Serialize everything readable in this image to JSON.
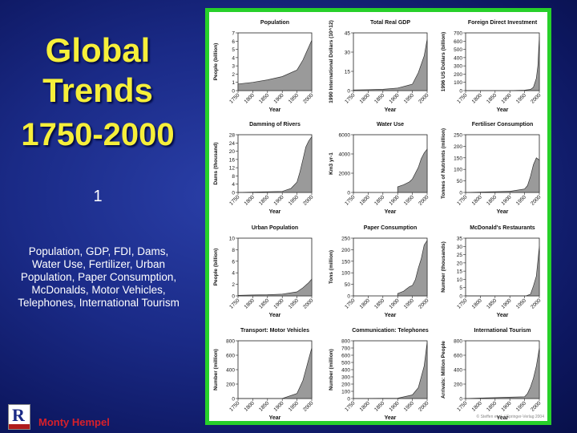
{
  "slide": {
    "title": "Global Trends",
    "years": "1750-2000",
    "number": "1",
    "caption": "Population, GDP, FDI, Dams, Water Use, Fertilizer, Urban Population, Paper Consumption, McDonalds, Motor Vehicles, Telephones, International Tourism",
    "author": "Monty Hempel",
    "credit": "© Steffen et al. / Springer-Verlag 2004"
  },
  "colors": {
    "title": "#f6ef3a",
    "frame": "#27d02a",
    "fill": "#9a9a9a",
    "author": "#d8202a"
  },
  "chart_data": [
    {
      "type": "area",
      "title": "Population",
      "ylabel": "People (billion)",
      "xlabel": "Year",
      "ylim": [
        0,
        7
      ],
      "yticks": [
        0,
        1,
        2,
        3,
        4,
        5,
        6,
        7
      ],
      "x": [
        1750,
        1800,
        1850,
        1900,
        1950,
        1970,
        1990,
        2000
      ],
      "values": [
        0.8,
        1.0,
        1.3,
        1.7,
        2.5,
        3.7,
        5.3,
        6.1
      ]
    },
    {
      "type": "area",
      "title": "Total Real GDP",
      "ylabel": "1990 International Dollars (10^12)",
      "xlabel": "Year",
      "ylim": [
        0,
        45
      ],
      "yticks": [
        0,
        15,
        30,
        45
      ],
      "x": [
        1750,
        1800,
        1850,
        1900,
        1950,
        1970,
        1990,
        2000
      ],
      "values": [
        0.5,
        0.7,
        1.0,
        2.0,
        5.0,
        14,
        27,
        40
      ]
    },
    {
      "type": "area",
      "title": "Foreign Direct Investment",
      "ylabel": "1996 US Dollars (billion)",
      "xlabel": "Year",
      "ylim": [
        0,
        700
      ],
      "yticks": [
        0,
        100,
        200,
        300,
        400,
        500,
        600,
        700
      ],
      "x": [
        1750,
        1900,
        1950,
        1970,
        1980,
        1990,
        1995,
        2000
      ],
      "values": [
        0,
        0,
        5,
        15,
        40,
        150,
        300,
        650
      ]
    },
    {
      "type": "area",
      "title": "Damming of Rivers",
      "ylabel": "Dams (thousand)",
      "xlabel": "Year",
      "ylim": [
        0,
        28
      ],
      "yticks": [
        0,
        4,
        8,
        12,
        16,
        20,
        24,
        28
      ],
      "x": [
        1750,
        1900,
        1930,
        1950,
        1960,
        1970,
        1980,
        1990,
        2000
      ],
      "values": [
        0,
        0.5,
        2,
        5,
        10,
        16,
        22,
        25,
        27
      ]
    },
    {
      "type": "area",
      "title": "Water Use",
      "ylabel": "Km3 yr-1",
      "xlabel": "Year",
      "ylim": [
        0,
        6000
      ],
      "yticks": [
        0,
        2000,
        4000,
        6000
      ],
      "x": [
        1900,
        1920,
        1940,
        1950,
        1960,
        1970,
        1980,
        1990,
        2000
      ],
      "values": [
        580,
        800,
        1100,
        1400,
        2000,
        2600,
        3500,
        4100,
        4500
      ]
    },
    {
      "type": "area",
      "title": "Fertiliser Consumption",
      "ylabel": "Tonnes of Nutrients (million)",
      "xlabel": "Year",
      "ylim": [
        0,
        250
      ],
      "yticks": [
        0,
        50,
        100,
        150,
        200,
        250
      ],
      "x": [
        1750,
        1900,
        1950,
        1960,
        1970,
        1980,
        1990,
        2000
      ],
      "values": [
        0,
        5,
        15,
        30,
        70,
        120,
        150,
        140
      ]
    },
    {
      "type": "area",
      "title": "Urban Population",
      "ylabel": "People (billion)",
      "xlabel": "Year",
      "ylim": [
        0,
        10
      ],
      "yticks": [
        0,
        2,
        4,
        6,
        8,
        10
      ],
      "x": [
        1750,
        1800,
        1850,
        1900,
        1950,
        1970,
        1990,
        2000
      ],
      "values": [
        0.1,
        0.15,
        0.2,
        0.3,
        0.7,
        1.4,
        2.3,
        2.9
      ]
    },
    {
      "type": "area",
      "title": "Paper Consumption",
      "ylabel": "Tons (million)",
      "xlabel": "Year",
      "ylim": [
        0,
        250
      ],
      "yticks": [
        0,
        50,
        100,
        150,
        200,
        250
      ],
      "x": [
        1900,
        1920,
        1940,
        1950,
        1960,
        1970,
        1980,
        1990,
        2000
      ],
      "values": [
        10,
        20,
        40,
        45,
        70,
        120,
        160,
        220,
        240
      ]
    },
    {
      "type": "area",
      "title": "McDonald's Restaurants",
      "ylabel": "Number (thousands)",
      "xlabel": "Year",
      "ylim": [
        0,
        35
      ],
      "yticks": [
        0,
        5,
        10,
        15,
        20,
        25,
        30,
        35
      ],
      "x": [
        1750,
        1955,
        1970,
        1980,
        1990,
        2000
      ],
      "values": [
        0,
        0,
        1,
        6,
        12,
        30
      ]
    },
    {
      "type": "area",
      "title": "Transport: Motor Vehicles",
      "ylabel": "Number (million)",
      "xlabel": "Year",
      "ylim": [
        0,
        800
      ],
      "yticks": [
        0,
        200,
        400,
        600,
        800
      ],
      "x": [
        1750,
        1900,
        1950,
        1970,
        1990,
        2000
      ],
      "values": [
        0,
        0,
        70,
        250,
        550,
        700
      ]
    },
    {
      "type": "area",
      "title": "Communication: Telephones",
      "ylabel": "Number (million)",
      "xlabel": "Year",
      "ylim": [
        0,
        800
      ],
      "yticks": [
        0,
        100,
        200,
        300,
        400,
        500,
        600,
        700,
        800
      ],
      "x": [
        1750,
        1900,
        1950,
        1970,
        1990,
        2000
      ],
      "values": [
        0,
        5,
        50,
        150,
        450,
        780
      ]
    },
    {
      "type": "area",
      "title": "International Tourism",
      "ylabel": "Arrivals: Million People",
      "xlabel": "Year",
      "ylim": [
        0,
        800
      ],
      "yticks": [
        0,
        200,
        400,
        600,
        800
      ],
      "x": [
        1750,
        1950,
        1960,
        1970,
        1980,
        1990,
        2000
      ],
      "values": [
        0,
        25,
        70,
        160,
        280,
        450,
        700
      ]
    }
  ]
}
